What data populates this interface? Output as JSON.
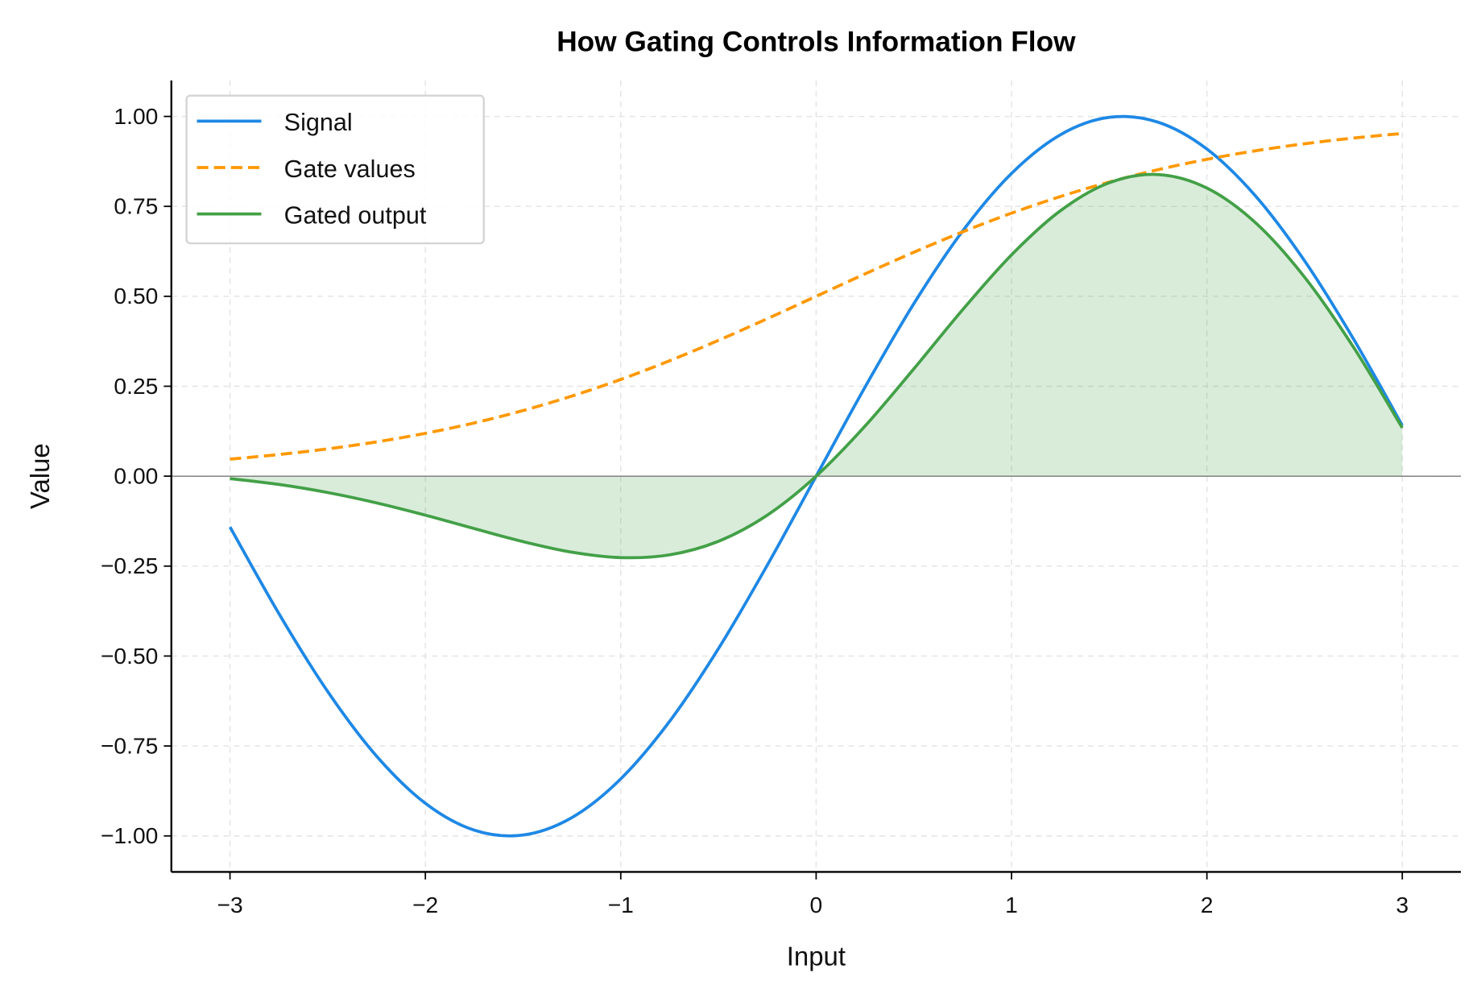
{
  "chart_data": {
    "type": "line",
    "title": "How Gating Controls Information Flow",
    "xlabel": "Input",
    "ylabel": "Value",
    "xlim": [
      -3.3,
      3.3
    ],
    "ylim": [
      -1.1,
      1.1
    ],
    "grid": true,
    "legend_placement": "top-left",
    "x_ticks": [
      "−3",
      "−2",
      "−1",
      "0",
      "1",
      "2",
      "3"
    ],
    "x_tick_values": [
      -3,
      -2,
      -1,
      0,
      1,
      2,
      3
    ],
    "y_ticks": [
      "1.00",
      "0.75",
      "0.50",
      "0.25",
      "0.00",
      "−0.25",
      "−0.50",
      "−0.75",
      "−1.00"
    ],
    "y_tick_values": [
      1,
      0.75,
      0.5,
      0.25,
      0,
      -0.25,
      -0.5,
      -0.75,
      -1
    ],
    "x": [
      -3,
      -2.75,
      -2.5,
      -2.25,
      -2,
      -1.75,
      -1.5,
      -1.25,
      -1,
      -0.75,
      -0.5,
      -0.25,
      0,
      0.25,
      0.5,
      0.75,
      1,
      1.25,
      1.5,
      1.75,
      2,
      2.25,
      2.5,
      2.75,
      3
    ],
    "series": [
      {
        "name": "Signal",
        "color": "#1e88e5",
        "style": "solid",
        "values": [
          -0.1411,
          -0.3817,
          -0.5985,
          -0.7781,
          -0.9093,
          -0.984,
          -0.9975,
          -0.949,
          -0.8415,
          -0.6816,
          -0.4794,
          -0.2474,
          0,
          0.2474,
          0.4794,
          0.6816,
          0.8415,
          0.949,
          0.9975,
          0.984,
          0.9093,
          0.7781,
          0.5985,
          0.3817,
          0.1411
        ]
      },
      {
        "name": "Gate values",
        "color": "#ff9800",
        "style": "dashed",
        "values": [
          0.0474,
          0.0601,
          0.0759,
          0.0953,
          0.1192,
          0.148,
          0.1824,
          0.2227,
          0.2689,
          0.3208,
          0.3775,
          0.4378,
          0.5,
          0.5622,
          0.6225,
          0.6792,
          0.7311,
          0.7773,
          0.8176,
          0.852,
          0.8808,
          0.9047,
          0.9241,
          0.9399,
          0.9526
        ]
      },
      {
        "name": "Gated output",
        "color": "#43a047",
        "style": "solid",
        "fill_to_zero": true,
        "values": [
          -0.0067,
          -0.0229,
          -0.0454,
          -0.0742,
          -0.1084,
          -0.1456,
          -0.1819,
          -0.2113,
          -0.2263,
          -0.2187,
          -0.181,
          -0.1083,
          0,
          0.1391,
          0.2984,
          0.4629,
          0.6152,
          0.7377,
          0.8156,
          0.8384,
          0.8009,
          0.7039,
          0.5531,
          0.3588,
          0.1344
        ]
      }
    ]
  }
}
